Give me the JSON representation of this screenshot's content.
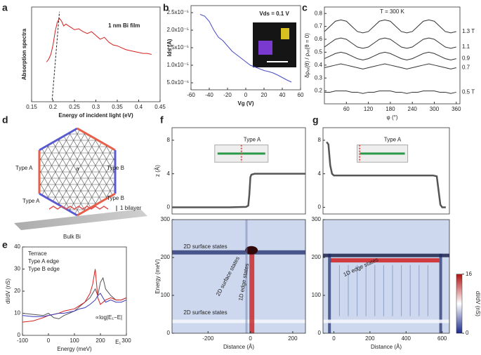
{
  "panel_labels": [
    "a",
    "b",
    "c",
    "d",
    "e",
    "f",
    "g"
  ],
  "diagram": {
    "labels": [
      "Type A",
      "Type B",
      "a",
      "Type A",
      "Type B",
      "1 bilayer",
      "Bulk Bi"
    ]
  },
  "chart_data": [
    {
      "type": "line",
      "xlabel": "Energy of incident light (eV)",
      "ylabel": "Absorption spectra",
      "annotations": [
        "1 nm Bi film"
      ],
      "xlim": [
        0.15,
        0.45
      ],
      "xticks": [
        0.15,
        0.2,
        0.25,
        0.3,
        0.35,
        0.4,
        0.45
      ],
      "ylim": [
        0,
        1
      ],
      "x": [
        0.185,
        0.19,
        0.195,
        0.2,
        0.205,
        0.21,
        0.215,
        0.22,
        0.225,
        0.23,
        0.24,
        0.25,
        0.26,
        0.27,
        0.28,
        0.29,
        0.3,
        0.31,
        0.32,
        0.33,
        0.34,
        0.35,
        0.36,
        0.37,
        0.38,
        0.39,
        0.4,
        0.41,
        0.42,
        0.43
      ],
      "series": [
        {
          "color": "#d62020",
          "values": [
            0.42,
            0.45,
            0.5,
            0.6,
            0.74,
            0.84,
            0.88,
            0.85,
            0.8,
            0.82,
            0.79,
            0.76,
            0.77,
            0.74,
            0.72,
            0.74,
            0.7,
            0.66,
            0.68,
            0.63,
            0.6,
            0.59,
            0.57,
            0.55,
            0.54,
            0.53,
            0.52,
            0.51,
            0.51,
            0.5
          ]
        },
        {
          "color": "#222222",
          "dash": true,
          "x": [
            0.198,
            0.215
          ],
          "values": [
            0.02,
            0.95
          ]
        }
      ]
    },
    {
      "type": "line",
      "xlabel": "Vg (V)",
      "ylabel": "Ids (A)",
      "annotations": [
        "Vds = 0.1 V"
      ],
      "xlim": [
        -60,
        60
      ],
      "xticks": [
        -60,
        -40,
        -20,
        0,
        20,
        40,
        60
      ],
      "ylim": [
        3e-06,
        2.7e-05
      ],
      "yticks": [
        {
          "value": 5e-06,
          "label": "5.0x10⁻⁶"
        },
        {
          "value": 1e-05,
          "label": "1.0x10⁻⁵"
        },
        {
          "value": 1.5e-05,
          "label": "1.5x10⁻⁵"
        },
        {
          "value": 2e-05,
          "label": "2.0x10⁻⁵"
        },
        {
          "value": 2.5e-05,
          "label": "2.5x10⁻⁵"
        }
      ],
      "x": [
        -50,
        -45,
        -40,
        -35,
        -30,
        -25,
        -20,
        -15,
        -10,
        -5,
        0,
        5,
        10,
        15,
        20,
        25,
        30,
        35,
        40,
        45,
        50
      ],
      "series": [
        {
          "color": "#4a4ac8",
          "values": [
            2.45e-05,
            2.4e-05,
            2.25e-05,
            2e-05,
            1.8e-05,
            1.7e-05,
            1.55e-05,
            1.4e-05,
            1.3e-05,
            1.2e-05,
            1.1e-05,
            1e-05,
            9.5e-06,
            9e-06,
            8.5e-06,
            8.2e-06,
            7.8e-06,
            7.2e-06,
            6.5e-06,
            5.8e-06,
            5.2e-06
          ]
        }
      ]
    },
    {
      "type": "line",
      "xlabel": "φ (°)",
      "ylabel": "δρₓₓ(θ) / ρₓₓ(θ = 0)",
      "annotations": [
        "T = 300 K"
      ],
      "xlim": [
        0,
        370
      ],
      "xticks": [
        60,
        120,
        180,
        240,
        300,
        360
      ],
      "ylim": [
        0.1,
        0.85
      ],
      "yticks": [
        0.2,
        0.3,
        0.4,
        0.5,
        0.6,
        0.7,
        0.8
      ],
      "x": [
        0,
        15,
        30,
        45,
        60,
        75,
        90,
        105,
        120,
        135,
        150,
        165,
        180,
        195,
        210,
        225,
        240,
        255,
        270,
        285,
        300,
        315,
        330,
        345,
        360
      ],
      "series": [
        {
          "name": "1.3 T",
          "color": "#333333",
          "values": [
            0.66,
            0.7,
            0.74,
            0.75,
            0.74,
            0.7,
            0.66,
            0.65,
            0.66,
            0.7,
            0.74,
            0.75,
            0.74,
            0.7,
            0.66,
            0.65,
            0.66,
            0.7,
            0.74,
            0.75,
            0.74,
            0.7,
            0.66,
            0.65,
            0.66
          ]
        },
        {
          "name": "1.1",
          "color": "#333333",
          "values": [
            0.54,
            0.57,
            0.6,
            0.61,
            0.6,
            0.57,
            0.54,
            0.53,
            0.54,
            0.57,
            0.6,
            0.61,
            0.6,
            0.57,
            0.54,
            0.53,
            0.54,
            0.57,
            0.6,
            0.61,
            0.6,
            0.57,
            0.54,
            0.53,
            0.54
          ]
        },
        {
          "name": "0.9",
          "color": "#333333",
          "values": [
            0.45,
            0.47,
            0.49,
            0.5,
            0.49,
            0.47,
            0.45,
            0.44,
            0.45,
            0.47,
            0.49,
            0.5,
            0.49,
            0.47,
            0.45,
            0.44,
            0.45,
            0.47,
            0.49,
            0.5,
            0.49,
            0.47,
            0.45,
            0.44,
            0.45
          ]
        },
        {
          "name": "0.7",
          "color": "#333333",
          "values": [
            0.38,
            0.39,
            0.4,
            0.41,
            0.4,
            0.39,
            0.38,
            0.37,
            0.38,
            0.39,
            0.4,
            0.41,
            0.4,
            0.39,
            0.38,
            0.37,
            0.38,
            0.39,
            0.4,
            0.41,
            0.4,
            0.39,
            0.38,
            0.37,
            0.38
          ]
        },
        {
          "name": "0.5 T",
          "color": "#333333",
          "values": [
            0.19,
            0.19,
            0.2,
            0.2,
            0.2,
            0.19,
            0.19,
            0.18,
            0.19,
            0.19,
            0.2,
            0.2,
            0.2,
            0.19,
            0.19,
            0.18,
            0.19,
            0.19,
            0.2,
            0.2,
            0.2,
            0.19,
            0.19,
            0.18,
            0.19
          ]
        }
      ]
    },
    {
      "type": "line",
      "xlabel": "Energy (meV)",
      "ylabel": "dI/dV (nS)",
      "annotations": [
        "∝log|E₁−E|",
        "E₁"
      ],
      "xlim": [
        -100,
        300
      ],
      "xticks": [
        -100,
        0,
        100,
        200,
        300
      ],
      "ylim": [
        0,
        40
      ],
      "yticks": [
        0,
        10,
        20,
        30,
        40
      ],
      "x": [
        -100,
        -60,
        -20,
        0,
        20,
        40,
        60,
        80,
        100,
        120,
        140,
        160,
        170,
        180,
        190,
        200,
        210,
        220,
        240,
        260,
        280,
        300
      ],
      "series": [
        {
          "name": "Terrace",
          "color": "#555555",
          "values": [
            10,
            9.5,
            9,
            10,
            8,
            7.5,
            9,
            10,
            11,
            13,
            15,
            17,
            19,
            21,
            18,
            24,
            26,
            21,
            18,
            16,
            16,
            17
          ]
        },
        {
          "name": "Type A edge",
          "color": "#d62020",
          "values": [
            6,
            6.5,
            8,
            9,
            9.5,
            10,
            11,
            11.5,
            12,
            13.5,
            15,
            19,
            23,
            30,
            17,
            14,
            15,
            16,
            17,
            16,
            16,
            17
          ]
        },
        {
          "name": "Type B edge",
          "color": "#3a3ab8",
          "values": [
            9,
            8.5,
            8.5,
            9,
            9.5,
            10,
            10,
            10.5,
            11,
            12,
            12.5,
            14,
            15,
            16,
            18,
            19,
            17,
            15,
            16,
            15,
            15,
            16
          ]
        }
      ]
    },
    {
      "type": "line",
      "ylabel": "z (Å)",
      "annotations": [
        "Type A"
      ],
      "xlim": [
        -370,
        260
      ],
      "ylim": [
        -0.8,
        9.5
      ],
      "yticks": [
        0,
        4,
        8
      ],
      "x": [
        -370,
        -300,
        -200,
        -100,
        -20,
        -10,
        -5,
        0,
        5,
        20,
        100,
        200,
        260
      ],
      "series": [
        {
          "color": "#555555",
          "values": [
            0,
            0,
            0,
            0,
            0.05,
            0.2,
            1.5,
            3.6,
            3.9,
            4,
            4,
            4,
            4
          ]
        }
      ]
    },
    {
      "type": "heatmap",
      "xlabel": "Distance (Å)",
      "ylabel": "Energy (meV)",
      "annotations": [
        "2D surface states",
        "2D surface states",
        "1D edge states",
        "2D surface states"
      ],
      "xlim": [
        -370,
        260
      ],
      "xticks": [
        -200,
        0,
        200
      ],
      "ylim": [
        0,
        300
      ],
      "yticks": [
        0,
        100,
        200,
        300
      ]
    },
    {
      "type": "line",
      "annotations": [
        "Type A"
      ],
      "xlim": [
        -60,
        640
      ],
      "ylim": [
        -0.8,
        9.5
      ],
      "yticks": [
        0,
        4,
        8
      ],
      "x": [
        -40,
        -30,
        -20,
        -10,
        0,
        100,
        200,
        300,
        400,
        500,
        550,
        570,
        580,
        590,
        600,
        620
      ],
      "series": [
        {
          "color": "#555555",
          "values": [
            7.8,
            7.5,
            5,
            4,
            3.8,
            3.8,
            3.8,
            3.8,
            3.8,
            3.8,
            3.8,
            3.7,
            2,
            0.3,
            0,
            0
          ]
        }
      ]
    },
    {
      "type": "heatmap",
      "xlabel": "Distance (Å)",
      "annotations": [
        "1D edge states"
      ],
      "xlim": [
        -60,
        640
      ],
      "xticks": [
        0,
        200,
        400,
        600
      ],
      "ylim": [
        0,
        300
      ],
      "yticks": [
        0,
        100,
        200,
        300
      ],
      "colorbar": {
        "lim": [
          0,
          16
        ],
        "ticks": [
          0,
          16
        ],
        "label": "dI/dV (nS)"
      }
    }
  ]
}
